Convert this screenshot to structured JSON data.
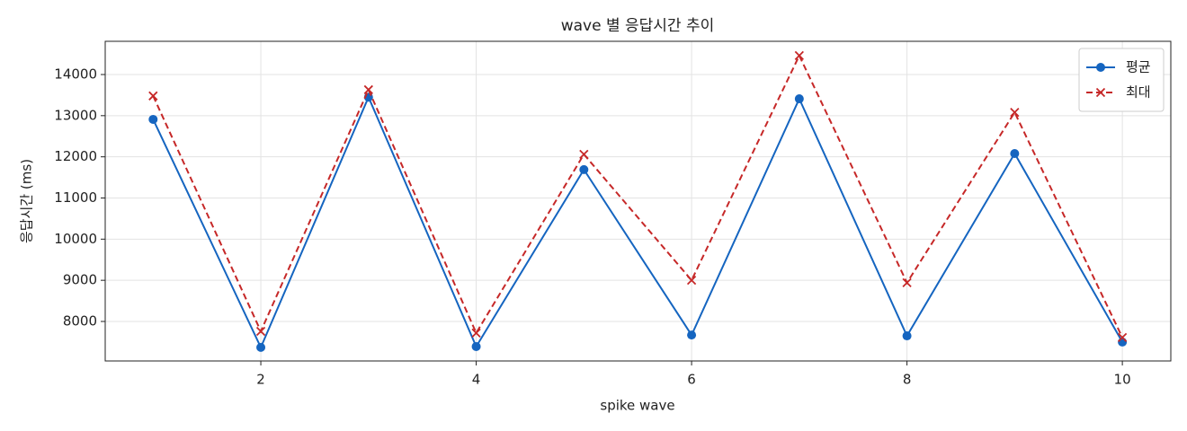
{
  "chart_data": {
    "type": "line",
    "title": "wave 별 응답시간 추이",
    "x_label": "spike wave",
    "y_label": "응답시간 (ms)",
    "x": [
      1,
      2,
      3,
      4,
      5,
      6,
      7,
      8,
      9,
      10
    ],
    "series": [
      {
        "name": "평균",
        "color": "#1565c0",
        "marker": "o",
        "linestyle": "solid",
        "values": [
          12910,
          7370,
          13450,
          7390,
          11690,
          7670,
          13410,
          7650,
          12080,
          7500
        ]
      },
      {
        "name": "최대",
        "color": "#c62828",
        "marker": "x",
        "linestyle": "dashed",
        "values": [
          13480,
          7760,
          13630,
          7720,
          12060,
          9000,
          14460,
          8940,
          13080,
          7610
        ]
      }
    ],
    "xlim": [
      0.555,
      10.45
    ],
    "ylim": [
      7040,
      14807
    ],
    "xticks": [
      2,
      4,
      6,
      8,
      10
    ],
    "yticks": [
      8000,
      9000,
      10000,
      11000,
      12000,
      13000,
      14000
    ],
    "grid": true,
    "legend": "upper right"
  }
}
